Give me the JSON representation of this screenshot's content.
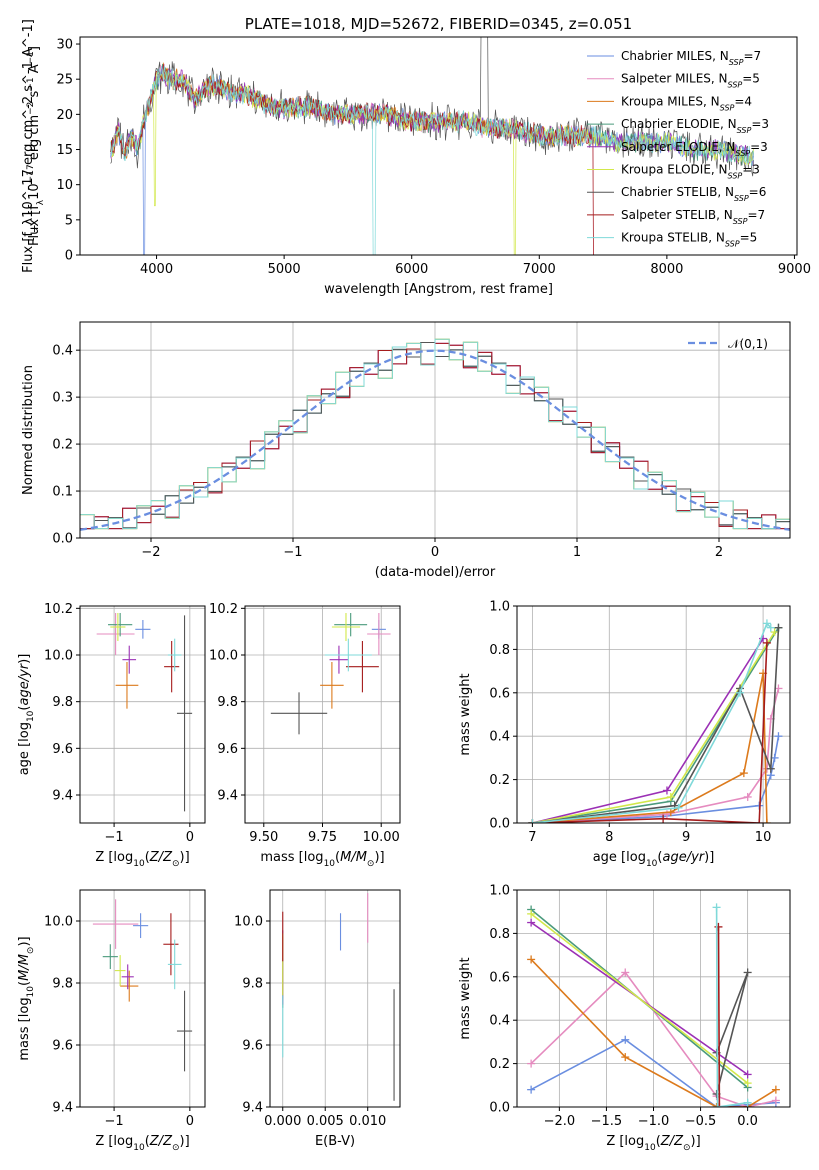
{
  "palette": [
    "#6a8ee0",
    "#e58bbf",
    "#dc7a1c",
    "#4a9a7c",
    "#9b30b5",
    "#d2e84a",
    "#555555",
    "#a51c1c",
    "#7fd9d9"
  ],
  "chart_data": [
    {
      "id": "spectrum",
      "type": "line",
      "title": "PLATE=1018, MJD=52672, FIBERID=0345, z=0.051",
      "xlabel": "wavelength [Angstrom, rest frame]",
      "ylabel": "Flux [f_λ10^-17 erg cm^-2 s^-1 A^-1]",
      "xlim": [
        3400,
        9020
      ],
      "ylim": [
        0,
        31
      ],
      "xticks": [
        4000,
        5000,
        6000,
        7000,
        8000,
        9000
      ],
      "yticks": [
        0,
        5,
        10,
        15,
        20,
        25,
        30
      ],
      "grid": false,
      "legend_position": "top-right",
      "legend": [
        {
          "base": "Chabrier MILES, N",
          "sub": "SSP",
          "tail": "=7"
        },
        {
          "base": "Salpeter MILES, N",
          "sub": "SSP",
          "tail": "=5"
        },
        {
          "base": "Kroupa MILES, N",
          "sub": "SSP",
          "tail": "=4"
        },
        {
          "base": "Chabrier ELODIE, N",
          "sub": "SSP",
          "tail": "=3"
        },
        {
          "base": "Salpeter ELODIE, N",
          "sub": "SSP",
          "tail": "=3"
        },
        {
          "base": "Kroupa ELODIE, N",
          "sub": "SSP",
          "tail": "=3"
        },
        {
          "base": "Chabrier STELIB, N",
          "sub": "SSP",
          "tail": "=6"
        },
        {
          "base": "Salpeter STELIB, N",
          "sub": "SSP",
          "tail": "=7"
        },
        {
          "base": "Kroupa STELIB, N",
          "sub": "SSP",
          "tail": "=5"
        }
      ],
      "x": [
        3650,
        3700,
        3750,
        3800,
        3850,
        3900,
        3950,
        4000,
        4050,
        4100,
        4200,
        4300,
        4400,
        4500,
        4600,
        4700,
        4800,
        4900,
        5000,
        5200,
        5400,
        5600,
        5800,
        6000,
        6200,
        6400,
        6600,
        6800,
        7000,
        7200,
        7400,
        7600,
        7800,
        8000,
        8200,
        8400,
        8600,
        8700
      ],
      "y": [
        15,
        18,
        14,
        17,
        15,
        19,
        22,
        25,
        26,
        25,
        25,
        22,
        24,
        24,
        23,
        23,
        22,
        21,
        21,
        21,
        20,
        20,
        20,
        19,
        19,
        19,
        18,
        18,
        17,
        17,
        17,
        16,
        16,
        16,
        15,
        15,
        14,
        14
      ]
    },
    {
      "id": "residuals",
      "type": "histogram",
      "xlabel": "(data-model)/error",
      "ylabel": "Normed distribution",
      "xlim": [
        -2.5,
        2.5
      ],
      "ylim": [
        0,
        0.46
      ],
      "xticks": [
        -2,
        -1,
        0,
        1,
        2
      ],
      "yticks": [
        0.0,
        0.1,
        0.2,
        0.3,
        0.4
      ],
      "grid": true,
      "legend_position": "top-right",
      "legend_label": "𝒩(0,1)",
      "bin_width": 0.1,
      "ripple": [
        0.02,
        -0.03,
        0.025,
        -0.015,
        0.03,
        -0.02,
        0.01,
        -0.035,
        0.02
      ]
    },
    {
      "id": "age_vs_z",
      "type": "errorbar",
      "xlabel": "Z [log10(Z/Z⊙)]",
      "ylabel": "age  [log10(age/yr)]",
      "xlim": [
        -1.45,
        0.2
      ],
      "ylim": [
        9.28,
        10.21
      ],
      "xticks": [
        -1,
        0
      ],
      "yticks": [
        9.4,
        9.6,
        9.8,
        10.0,
        10.2
      ],
      "grid": true,
      "points": [
        {
          "x": -0.62,
          "y": 10.11,
          "xe": 0.1,
          "ye": 0.04
        },
        {
          "x": -0.98,
          "y": 10.09,
          "xe": 0.25,
          "ye": 0.09
        },
        {
          "x": -0.83,
          "y": 9.87,
          "xe": 0.15,
          "ye": 0.1
        },
        {
          "x": -0.92,
          "y": 10.13,
          "xe": 0.16,
          "ye": 0.05
        },
        {
          "x": -0.8,
          "y": 9.98,
          "xe": 0.09,
          "ye": 0.06
        },
        {
          "x": -0.95,
          "y": 10.12,
          "xe": 0.1,
          "ye": 0.06
        },
        {
          "x": -0.07,
          "y": 9.75,
          "xe": 0.1,
          "ye": 0.42
        },
        {
          "x": -0.24,
          "y": 9.95,
          "xe": 0.1,
          "ye": 0.11
        },
        {
          "x": -0.2,
          "y": 10.0,
          "xe": 0.09,
          "ye": 0.07
        }
      ]
    },
    {
      "id": "age_vs_mass",
      "type": "errorbar",
      "xlabel": "mass [log10(M/M⊙)]",
      "ylabel": "",
      "xlim": [
        9.42,
        10.08
      ],
      "ylim": [
        9.28,
        10.21
      ],
      "xticks": [
        9.5,
        9.75,
        10.0
      ],
      "tick_labels": [
        "9.50",
        "9.75",
        "10.00"
      ],
      "yticks": [
        9.4,
        9.6,
        9.8,
        10.0,
        10.2
      ],
      "grid": true,
      "points": [
        {
          "x": 9.99,
          "y": 10.11,
          "xe": 0.03,
          "ye": 0.04
        },
        {
          "x": 9.99,
          "y": 10.09,
          "xe": 0.05,
          "ye": 0.09
        },
        {
          "x": 9.79,
          "y": 9.87,
          "xe": 0.05,
          "ye": 0.1
        },
        {
          "x": 9.87,
          "y": 10.13,
          "xe": 0.07,
          "ye": 0.05
        },
        {
          "x": 9.82,
          "y": 9.98,
          "xe": 0.04,
          "ye": 0.06
        },
        {
          "x": 9.85,
          "y": 10.12,
          "xe": 0.06,
          "ye": 0.06
        },
        {
          "x": 9.65,
          "y": 9.75,
          "xe": 0.12,
          "ye": 0.09
        },
        {
          "x": 9.92,
          "y": 9.95,
          "xe": 0.07,
          "ye": 0.11
        },
        {
          "x": 9.86,
          "y": 10.0,
          "xe": 0.1,
          "ye": 0.07
        }
      ]
    },
    {
      "id": "mass_weight_vs_age",
      "type": "line",
      "xlabel": "age  [log10(age/yr)]",
      "ylabel": "mass weight",
      "xlim": [
        6.8,
        10.35
      ],
      "ylim": [
        0,
        1
      ],
      "xticks": [
        7,
        8,
        9,
        10
      ],
      "yticks": [
        0.0,
        0.2,
        0.4,
        0.6,
        0.8,
        1.0
      ],
      "grid": true,
      "series": [
        {
          "x": [
            7.0,
            8.7,
            9.95,
            10.1,
            10.15,
            10.2
          ],
          "y": [
            0.0,
            0.03,
            0.08,
            0.22,
            0.3,
            0.4
          ]
        },
        {
          "x": [
            7.0,
            8.75,
            9.8,
            10.05,
            10.1,
            10.2
          ],
          "y": [
            0.0,
            0.04,
            0.12,
            0.25,
            0.48,
            0.62
          ]
        },
        {
          "x": [
            7.0,
            8.8,
            9.75,
            10.0,
            10.05
          ],
          "y": [
            0.0,
            0.05,
            0.23,
            0.69,
            0.0
          ]
        },
        {
          "x": [
            7.0,
            8.8,
            10.2
          ],
          "y": [
            0.0,
            0.1,
            0.9
          ]
        },
        {
          "x": [
            7.0,
            8.75,
            10.0
          ],
          "y": [
            0.0,
            0.15,
            0.85
          ]
        },
        {
          "x": [
            7.0,
            8.8,
            10.15
          ],
          "y": [
            0.0,
            0.12,
            0.88
          ]
        },
        {
          "x": [
            7.0,
            8.85,
            9.7,
            10.1,
            10.2
          ],
          "y": [
            0.0,
            0.08,
            0.62,
            0.25,
            0.9
          ]
        },
        {
          "x": [
            7.0,
            8.7,
            9.95,
            10.05
          ],
          "y": [
            0.0,
            0.02,
            0.0,
            0.83
          ]
        },
        {
          "x": [
            7.0,
            8.9,
            9.7,
            10.05,
            10.1
          ],
          "y": [
            0.0,
            0.07,
            0.6,
            0.92,
            0.9
          ]
        }
      ]
    },
    {
      "id": "mass_vs_z",
      "type": "errorbar",
      "xlabel": "Z [log10(Z/Z⊙)]",
      "ylabel": "mass [log10(M/M⊙)]",
      "xlim": [
        -1.45,
        0.2
      ],
      "ylim": [
        9.4,
        10.1
      ],
      "xticks": [
        -1,
        0
      ],
      "yticks": [
        9.4,
        9.6,
        9.8,
        10.0
      ],
      "grid": true,
      "points": [
        {
          "x": -0.65,
          "y": 9.985,
          "xe": 0.1,
          "ye": 0.04
        },
        {
          "x": -0.98,
          "y": 9.99,
          "xe": 0.3,
          "ye": 0.08
        },
        {
          "x": -0.8,
          "y": 9.79,
          "xe": 0.12,
          "ye": 0.05
        },
        {
          "x": -1.05,
          "y": 9.885,
          "xe": 0.1,
          "ye": 0.04
        },
        {
          "x": -0.82,
          "y": 9.82,
          "xe": 0.08,
          "ye": 0.04
        },
        {
          "x": -0.92,
          "y": 9.84,
          "xe": 0.07,
          "ye": 0.05
        },
        {
          "x": -0.07,
          "y": 9.645,
          "xe": 0.1,
          "ye": 0.13
        },
        {
          "x": -0.25,
          "y": 9.925,
          "xe": 0.1,
          "ye": 0.1
        },
        {
          "x": -0.2,
          "y": 9.86,
          "xe": 0.09,
          "ye": 0.08
        }
      ]
    },
    {
      "id": "mass_vs_ebv",
      "type": "errorbar",
      "xlabel": "E(B-V)",
      "ylabel": "",
      "xlim": [
        -0.0015,
        0.0138
      ],
      "ylim": [
        9.4,
        10.1
      ],
      "xticks": [
        0.0,
        0.005,
        0.01
      ],
      "tick_labels": [
        "0.000",
        "0.005",
        "0.010"
      ],
      "yticks": [
        9.4,
        9.6,
        9.8,
        10.0
      ],
      "grid": true,
      "points": [
        {
          "x": 0.0068,
          "y": 9.965,
          "xe": 0.0,
          "ye": 0.06
        },
        {
          "x": 0.01,
          "y": 10.01,
          "xe": 0.0,
          "ye": 0.08
        },
        {
          "x": 0.0,
          "y": 9.85,
          "xe": 0.0,
          "ye": 0.1
        },
        {
          "x": 0.0,
          "y": 9.8,
          "xe": 0.0,
          "ye": 0.08
        },
        {
          "x": 0.0,
          "y": 9.85,
          "xe": 0.0,
          "ye": 0.12
        },
        {
          "x": 0.0,
          "y": 9.86,
          "xe": 0.0,
          "ye": 0.1
        },
        {
          "x": 0.0131,
          "y": 9.6,
          "xe": 0.0,
          "ye": 0.18
        },
        {
          "x": 0.0,
          "y": 9.95,
          "xe": 0.0,
          "ye": 0.08
        },
        {
          "x": 0.0,
          "y": 9.66,
          "xe": 0.0,
          "ye": 0.1
        }
      ]
    },
    {
      "id": "mass_weight_vs_z",
      "type": "line",
      "xlabel": "Z [log10(Z/Z⊙)]",
      "ylabel": "mass weight",
      "xlim": [
        -2.45,
        0.45
      ],
      "ylim": [
        0,
        1
      ],
      "xticks": [
        -2.0,
        -1.5,
        -1.0,
        -0.5,
        0.0
      ],
      "yticks": [
        0.0,
        0.2,
        0.4,
        0.6,
        0.8,
        1.0
      ],
      "grid": true,
      "series": [
        {
          "x": [
            -2.3,
            -1.3,
            -0.33,
            0.0,
            0.3
          ],
          "y": [
            0.08,
            0.31,
            0.0,
            0.01,
            0.02
          ]
        },
        {
          "x": [
            -2.3,
            -1.3,
            -0.33,
            0.0,
            0.3
          ],
          "y": [
            0.2,
            0.62,
            0.05,
            0.0,
            0.03
          ]
        },
        {
          "x": [
            -2.3,
            -1.3,
            -0.33,
            0.0,
            0.3
          ],
          "y": [
            0.68,
            0.23,
            0.0,
            0.0,
            0.08
          ]
        },
        {
          "x": [
            -2.3,
            0.0
          ],
          "y": [
            0.91,
            0.09
          ]
        },
        {
          "x": [
            -2.3,
            0.0
          ],
          "y": [
            0.85,
            0.15
          ]
        },
        {
          "x": [
            -2.3,
            0.0
          ],
          "y": [
            0.89,
            0.11
          ]
        },
        {
          "x": [
            -0.33,
            0.0,
            -0.33
          ],
          "y": [
            0.25,
            0.62,
            0.06
          ]
        },
        {
          "x": [
            -0.31,
            -0.3,
            0.0
          ],
          "y": [
            0.83,
            0.0,
            0.0
          ]
        },
        {
          "x": [
            -0.33,
            -0.32,
            0.0
          ],
          "y": [
            0.92,
            0.0,
            0.02
          ]
        }
      ]
    }
  ]
}
